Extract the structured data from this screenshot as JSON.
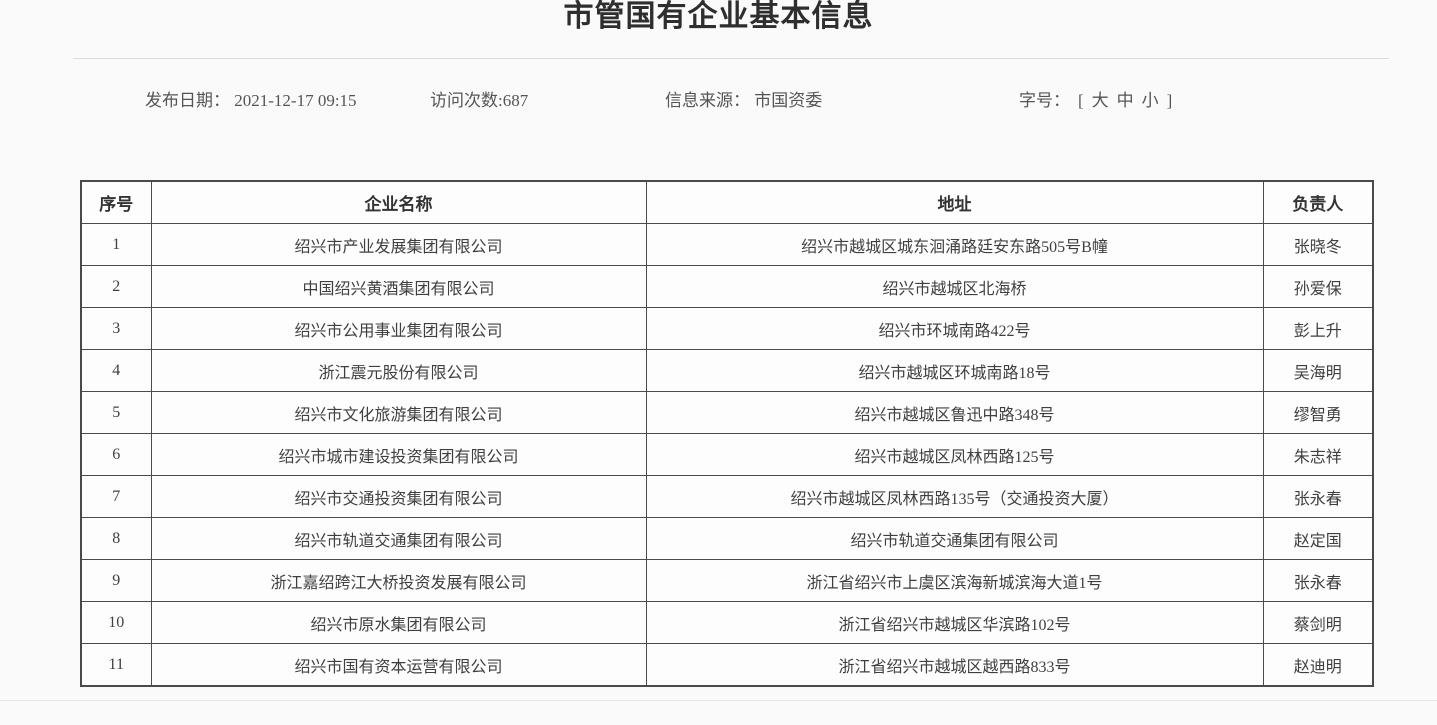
{
  "page": {
    "title": "市管国有企业基本信息"
  },
  "meta": {
    "publish_label": "发布日期：",
    "publish_value": "2021-12-17 09:15",
    "visits_label": "访问次数:",
    "visits_value": "687",
    "source_label": "信息来源：",
    "source_value": "市国资委",
    "fontsize_label": "字号：",
    "bracket_open": "[",
    "size_large": "大",
    "size_medium": "中",
    "size_small": "小",
    "bracket_close": "]"
  },
  "table": {
    "headers": [
      "序号",
      "企业名称",
      "地址",
      "负责人"
    ],
    "rows": [
      [
        "1",
        "绍兴市产业发展集团有限公司",
        "绍兴市越城区城东洄涌路廷安东路505号B幢",
        "张晓冬"
      ],
      [
        "2",
        "中国绍兴黄酒集团有限公司",
        "绍兴市越城区北海桥",
        "孙爱保"
      ],
      [
        "3",
        "绍兴市公用事业集团有限公司",
        "绍兴市环城南路422号",
        "彭上升"
      ],
      [
        "4",
        "浙江震元股份有限公司",
        "绍兴市越城区环城南路18号",
        "吴海明"
      ],
      [
        "5",
        "绍兴市文化旅游集团有限公司",
        "绍兴市越城区鲁迅中路348号",
        "缪智勇"
      ],
      [
        "6",
        "绍兴市城市建设投资集团有限公司",
        "绍兴市越城区凤林西路125号",
        "朱志祥"
      ],
      [
        "7",
        "绍兴市交通投资集团有限公司",
        "绍兴市越城区凤林西路135号（交通投资大厦）",
        "张永春"
      ],
      [
        "8",
        "绍兴市轨道交通集团有限公司",
        "绍兴市轨道交通集团有限公司",
        "赵定国"
      ],
      [
        "9",
        "浙江嘉绍跨江大桥投资发展有限公司",
        "浙江省绍兴市上虞区滨海新城滨海大道1号",
        "张永春"
      ],
      [
        "10",
        "绍兴市原水集团有限公司",
        "浙江省绍兴市越城区华滨路102号",
        "蔡剑明"
      ],
      [
        "11",
        "绍兴市国有资本运营有限公司",
        "浙江省绍兴市越城区越西路833号",
        "赵迪明"
      ]
    ]
  },
  "colors": {
    "page_bg": "#fbfafa",
    "table_border": "#4a4a4a",
    "body_text": "#3f3f3f",
    "meta_text": "#555555",
    "divider": "#dcdcdc"
  }
}
